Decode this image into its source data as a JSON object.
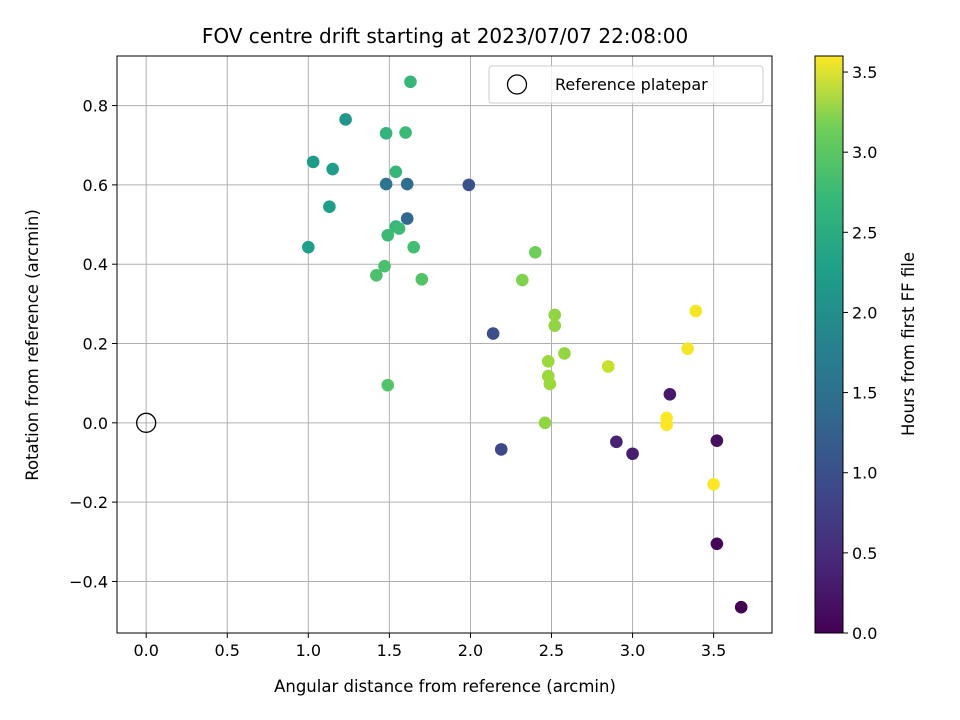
{
  "chart_data": {
    "type": "scatter",
    "title": "FOV centre drift starting at 2023/07/07 22:08:00",
    "xlabel": "Angular distance from reference (arcmin)",
    "ylabel": "Rotation from reference (arcmin)",
    "xlim": [
      -0.18,
      3.86
    ],
    "ylim": [
      -0.53,
      0.925
    ],
    "xticks": [
      0.0,
      0.5,
      1.0,
      1.5,
      2.0,
      2.5,
      3.0,
      3.5
    ],
    "xtick_labels": [
      "0.0",
      "0.5",
      "1.0",
      "1.5",
      "2.0",
      "2.5",
      "3.0",
      "3.5"
    ],
    "yticks": [
      -0.4,
      -0.2,
      0.0,
      0.2,
      0.4,
      0.6,
      0.8
    ],
    "ytick_labels": [
      "−0.4",
      "−0.2",
      "0.0",
      "0.2",
      "0.4",
      "0.6",
      "0.8"
    ],
    "grid": true,
    "legend": {
      "placement": "top-right",
      "entries": [
        {
          "label": "Reference platepar",
          "marker": "hollow-circle"
        }
      ]
    },
    "reference_point": {
      "x": 0.0,
      "y": 0.0,
      "label": "Reference platepar"
    },
    "colorbar": {
      "label": "Hours from first FF file",
      "range": [
        0.0,
        3.6
      ],
      "ticks": [
        0.0,
        0.5,
        1.0,
        1.5,
        2.0,
        2.5,
        3.0,
        3.5
      ],
      "tick_labels": [
        "0.0",
        "0.5",
        "1.0",
        "1.5",
        "2.0",
        "2.5",
        "3.0",
        "3.5"
      ],
      "colormap": "viridis"
    },
    "points": [
      {
        "x": 3.67,
        "y": -0.465,
        "hours": 0.0
      },
      {
        "x": 3.52,
        "y": -0.305,
        "hours": 0.05
      },
      {
        "x": 3.52,
        "y": -0.045,
        "hours": 0.15
      },
      {
        "x": 3.23,
        "y": 0.072,
        "hours": 0.25
      },
      {
        "x": 3.0,
        "y": -0.078,
        "hours": 0.3
      },
      {
        "x": 2.9,
        "y": -0.048,
        "hours": 0.35
      },
      {
        "x": 2.19,
        "y": -0.067,
        "hours": 0.8
      },
      {
        "x": 2.14,
        "y": 0.225,
        "hours": 0.85
      },
      {
        "x": 1.99,
        "y": 0.6,
        "hours": 0.9
      },
      {
        "x": 1.61,
        "y": 0.515,
        "hours": 1.2
      },
      {
        "x": 1.61,
        "y": 0.602,
        "hours": 1.3
      },
      {
        "x": 1.48,
        "y": 0.602,
        "hours": 1.4
      },
      {
        "x": 1.23,
        "y": 0.765,
        "hours": 1.9
      },
      {
        "x": 1.03,
        "y": 0.658,
        "hours": 1.95
      },
      {
        "x": 1.15,
        "y": 0.64,
        "hours": 2.0
      },
      {
        "x": 1.13,
        "y": 0.545,
        "hours": 2.0
      },
      {
        "x": 1.0,
        "y": 0.443,
        "hours": 2.0
      },
      {
        "x": 1.48,
        "y": 0.73,
        "hours": 2.35
      },
      {
        "x": 1.63,
        "y": 0.86,
        "hours": 2.4
      },
      {
        "x": 1.6,
        "y": 0.732,
        "hours": 2.45
      },
      {
        "x": 1.54,
        "y": 0.633,
        "hours": 2.4
      },
      {
        "x": 1.54,
        "y": 0.495,
        "hours": 2.4
      },
      {
        "x": 1.56,
        "y": 0.49,
        "hours": 2.45
      },
      {
        "x": 1.49,
        "y": 0.473,
        "hours": 2.45
      },
      {
        "x": 1.65,
        "y": 0.443,
        "hours": 2.5
      },
      {
        "x": 1.47,
        "y": 0.395,
        "hours": 2.55
      },
      {
        "x": 1.42,
        "y": 0.372,
        "hours": 2.55
      },
      {
        "x": 1.7,
        "y": 0.362,
        "hours": 2.6
      },
      {
        "x": 1.49,
        "y": 0.095,
        "hours": 2.6
      },
      {
        "x": 2.4,
        "y": 0.43,
        "hours": 2.8
      },
      {
        "x": 2.32,
        "y": 0.36,
        "hours": 2.9
      },
      {
        "x": 2.52,
        "y": 0.272,
        "hours": 3.0
      },
      {
        "x": 2.52,
        "y": 0.245,
        "hours": 3.0
      },
      {
        "x": 2.58,
        "y": 0.175,
        "hours": 3.0
      },
      {
        "x": 2.48,
        "y": 0.155,
        "hours": 3.05
      },
      {
        "x": 2.48,
        "y": 0.118,
        "hours": 3.05
      },
      {
        "x": 2.49,
        "y": 0.098,
        "hours": 3.05
      },
      {
        "x": 2.46,
        "y": 0.0,
        "hours": 3.0
      },
      {
        "x": 2.85,
        "y": 0.142,
        "hours": 3.3
      },
      {
        "x": 3.39,
        "y": 0.282,
        "hours": 3.55
      },
      {
        "x": 3.34,
        "y": 0.187,
        "hours": 3.55
      },
      {
        "x": 3.21,
        "y": 0.012,
        "hours": 3.6
      },
      {
        "x": 3.21,
        "y": -0.005,
        "hours": 3.6
      },
      {
        "x": 3.5,
        "y": -0.155,
        "hours": 3.6
      }
    ]
  }
}
